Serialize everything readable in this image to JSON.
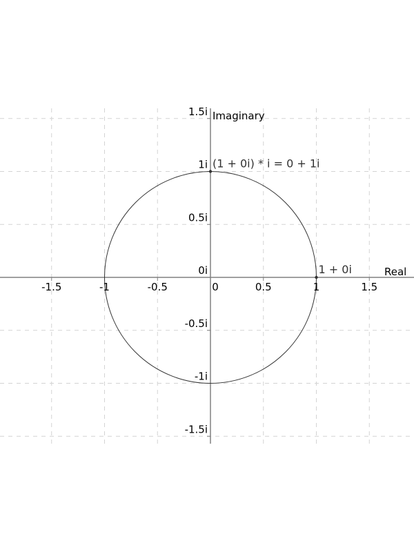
{
  "chart_data": {
    "type": "scatter",
    "xlabel": "Real",
    "ylabel": "Imaginary",
    "xlim": [
      -1.98,
      1.92
    ],
    "ylim": [
      -1.58,
      1.6
    ],
    "grid": true,
    "x_ticks": [
      {
        "value": -1.5,
        "label": "-1.5"
      },
      {
        "value": -1,
        "label": "-1"
      },
      {
        "value": -0.5,
        "label": "-0.5"
      },
      {
        "value": 0,
        "label": "0"
      },
      {
        "value": 0.5,
        "label": "0.5"
      },
      {
        "value": 1,
        "label": "1"
      },
      {
        "value": 1.5,
        "label": "1.5"
      }
    ],
    "y_ticks": [
      {
        "value": 1.5,
        "label": "1.5i"
      },
      {
        "value": 1,
        "label": "1i"
      },
      {
        "value": 0.5,
        "label": "0.5i"
      },
      {
        "value": 0,
        "label": "0i"
      },
      {
        "value": -0.5,
        "label": "-0.5i"
      },
      {
        "value": -1,
        "label": "-1i"
      },
      {
        "value": -1.5,
        "label": "-1.5i"
      }
    ],
    "circle": {
      "center": [
        0,
        0
      ],
      "radius": 1
    },
    "points": [
      {
        "x": 1,
        "y": 0,
        "label": "1 + 0i"
      },
      {
        "x": 0,
        "y": 1,
        "label": "(1 + 0i) * i = 0 + 1i"
      }
    ],
    "colors": {
      "axis": "#808080",
      "grid": "#d3d3d3",
      "circle": "#333333",
      "point": "#333333",
      "annotation": "#333333"
    }
  }
}
